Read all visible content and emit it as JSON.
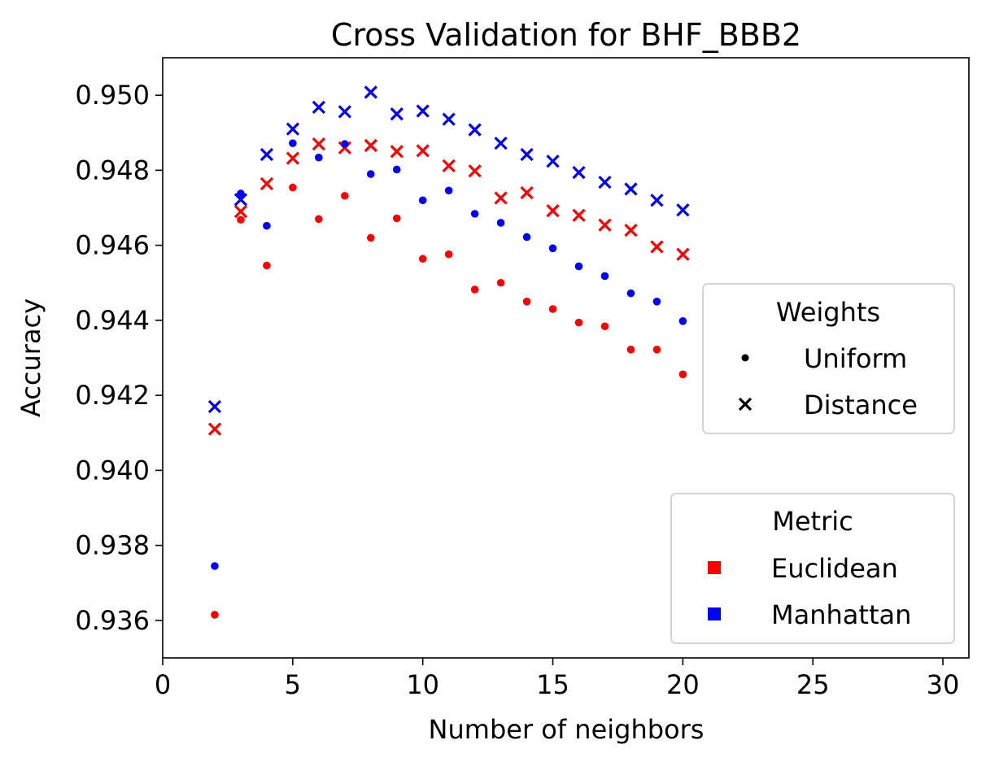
{
  "chart_data": {
    "type": "scatter",
    "title": "Cross Validation for BHF_BBB2",
    "xlabel": "Number of neighbors",
    "ylabel": "Accuracy",
    "xlim": [
      0,
      31
    ],
    "ylim": [
      0.935,
      0.951
    ],
    "xticks": [
      "0",
      "5",
      "10",
      "15",
      "20",
      "25",
      "30"
    ],
    "yticks": [
      "0.936",
      "0.938",
      "0.940",
      "0.942",
      "0.944",
      "0.946",
      "0.948",
      "0.950"
    ],
    "grid": false,
    "x": [
      2,
      3,
      4,
      5,
      6,
      7,
      8,
      9,
      10,
      11,
      12,
      13,
      14,
      15,
      16,
      17,
      18,
      19,
      20
    ],
    "series": [
      {
        "metric": "Euclidean",
        "weights": "Uniform",
        "marker": "dot",
        "color": "#ff0000",
        "values": [
          0.93615,
          0.94668,
          0.94546,
          0.94754,
          0.9467,
          0.94732,
          0.9462,
          0.94672,
          0.94564,
          0.94576,
          0.94482,
          0.945,
          0.9445,
          0.9443,
          0.94394,
          0.94384,
          0.94322,
          0.94322,
          0.94256
        ]
      },
      {
        "metric": "Euclidean",
        "weights": "Distance",
        "marker": "x",
        "color": "#ff0000",
        "values": [
          0.9411,
          0.9469,
          0.94764,
          0.94832,
          0.9487,
          0.9486,
          0.94866,
          0.9485,
          0.94852,
          0.94812,
          0.94798,
          0.94726,
          0.9474,
          0.94692,
          0.9468,
          0.94654,
          0.9464,
          0.94596,
          0.94576
        ]
      },
      {
        "metric": "Manhattan",
        "weights": "Uniform",
        "marker": "dot",
        "color": "#0000ff",
        "values": [
          0.93745,
          0.94738,
          0.94652,
          0.94872,
          0.94834,
          0.9487,
          0.9479,
          0.94802,
          0.9472,
          0.94746,
          0.94684,
          0.9466,
          0.94622,
          0.94592,
          0.94544,
          0.94518,
          0.94472,
          0.9445,
          0.94398
        ]
      },
      {
        "metric": "Manhattan",
        "weights": "Distance",
        "marker": "x",
        "color": "#0000ff",
        "values": [
          0.9417,
          0.94722,
          0.94842,
          0.9491,
          0.94968,
          0.94956,
          0.95008,
          0.9495,
          0.94958,
          0.94936,
          0.94908,
          0.94872,
          0.94842,
          0.94824,
          0.94794,
          0.94768,
          0.9475,
          0.9472,
          0.94694
        ]
      }
    ],
    "legends": [
      {
        "title": "Weights",
        "placement": "center-right",
        "entries": [
          {
            "label": "Uniform",
            "marker": "dot",
            "color": "#000000"
          },
          {
            "label": "Distance",
            "marker": "x",
            "color": "#000000"
          }
        ]
      },
      {
        "title": "Metric",
        "placement": "lower-right",
        "entries": [
          {
            "label": "Euclidean",
            "marker": "square",
            "color": "#ff0000"
          },
          {
            "label": "Manhattan",
            "marker": "square",
            "color": "#0000ff"
          }
        ]
      }
    ]
  }
}
